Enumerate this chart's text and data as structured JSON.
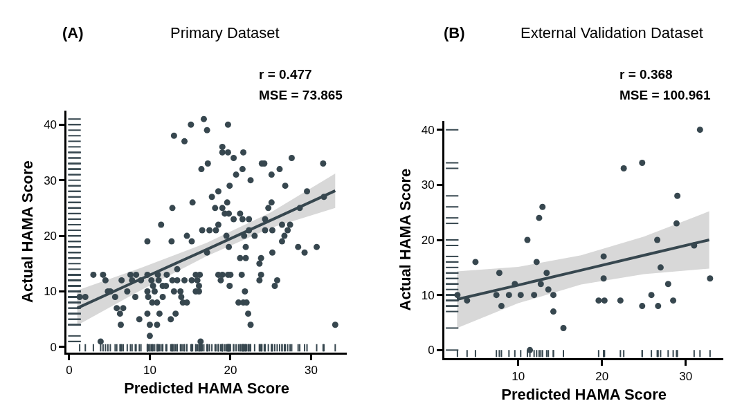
{
  "chart_data": [
    {
      "type": "scatter",
      "title": "Primary Dataset",
      "xlabel": "Predicted HAMA Score",
      "ylabel": "Actual HAMA Score",
      "annotations": [
        "(A)",
        "r = 0.477",
        "MSE = 73.865"
      ],
      "xlim": [
        -0.3,
        34.4
      ],
      "ylim": [
        -1,
        42.5
      ],
      "xticks": [
        0,
        10,
        20,
        30
      ],
      "yticks": [
        0,
        10,
        20,
        30,
        40
      ],
      "grid": false,
      "series": [
        {
          "type": "scatter",
          "marker": "circle",
          "color": "#37474f",
          "x": [
            1.3,
            2.0,
            3.0,
            4.2,
            4.5,
            3.9,
            4.8,
            5.1,
            5.7,
            6.5,
            5.9,
            6.7,
            6.3,
            6.4,
            7.2,
            7.6,
            8.3,
            7.8,
            8.2,
            8.7,
            8.9,
            9.7,
            9.7,
            10.2,
            9.7,
            9.8,
            10.4,
            10.6,
            10.3,
            10.9,
            9.7,
            10.0,
            10.9,
            10.0,
            11.2,
            11.0,
            11.1,
            11.6,
            12.0,
            11.6,
            11.4,
            12.7,
            12.8,
            13.0,
            14.3,
            15.1,
            15.3,
            14.6,
            15.2,
            16.4,
            16.5,
            13.4,
            12.1,
            12.8,
            13.4,
            13.0,
            13.8,
            13.9,
            14.1,
            14.6,
            13.2,
            12.6,
            14.3,
            15.2,
            15.7,
            16.2,
            15.9,
            16.1,
            15.7,
            16.1,
            16.3,
            16.7,
            17.1,
            19.7,
            19.0,
            19.0,
            19.7,
            20.4,
            21.6,
            17.2,
            20.7,
            21.5,
            19.9,
            22.5,
            23.9,
            24.2,
            25.1,
            26.1,
            27.6,
            26.8,
            31.5,
            29.5,
            31.6,
            28.6,
            18.5,
            17.7,
            18.1,
            19.0,
            19.6,
            19.3,
            19.8,
            20.4,
            21.2,
            21.5,
            22.3,
            18.5,
            17.4,
            18.2,
            19.5,
            21.7,
            23.0,
            22.3,
            24.3,
            25.1,
            24.7,
            24.3,
            25.2,
            26.4,
            27.4,
            27.1,
            26.7,
            26.4,
            28.4,
            29.2,
            30.7,
            19.8,
            21.9,
            17.1,
            21.2,
            21.9,
            23.8,
            23.6,
            25.2,
            18.5,
            19.0,
            19.7,
            20.0,
            18.8,
            19.9,
            21.4,
            23.8,
            23.6,
            25.8,
            25.5,
            21.8,
            21.0,
            21.6,
            22.0,
            22.2,
            22.5,
            33.0
          ],
          "values": [
            9,
            9,
            13,
            13,
            12,
            1,
            10,
            10,
            9,
            12,
            7,
            7,
            6,
            4,
            10,
            13,
            13,
            12,
            9,
            5,
            12,
            19,
            13,
            12,
            10,
            9,
            11,
            10,
            8,
            8,
            6,
            4,
            4,
            2,
            6,
            13,
            12,
            11,
            11,
            9,
            22,
            19,
            25,
            38,
            37,
            40,
            26,
            20,
            19,
            32,
            21,
            14,
            13,
            12,
            12,
            10,
            10,
            9,
            8,
            8,
            6,
            5,
            12,
            12,
            13,
            13,
            12,
            11,
            10,
            10,
            1,
            41,
            39,
            40,
            36,
            35,
            35,
            34,
            35,
            33,
            31,
            32,
            29,
            30,
            33,
            33,
            31,
            32,
            34,
            29,
            33,
            28,
            27,
            25,
            28,
            27,
            25,
            25,
            26,
            24,
            24,
            23,
            24,
            23,
            23,
            22,
            21,
            21,
            20,
            20,
            20,
            21,
            23,
            26,
            25,
            21,
            21,
            22,
            22,
            21,
            20,
            19,
            18,
            17,
            18,
            18,
            18,
            17,
            16,
            16,
            16,
            15,
            17,
            13,
            13,
            13,
            13,
            12,
            11,
            13,
            13,
            12,
            12,
            11,
            10,
            8,
            8,
            8,
            6,
            4,
            4
          ]
        },
        {
          "type": "line",
          "marker": "none",
          "color": "#37474f",
          "x": [
            1,
            9,
            17,
            25,
            33
          ],
          "values": [
            7,
            12.3,
            17.5,
            22.8,
            28.1
          ],
          "lower": [
            3.9,
            10.3,
            16.3,
            21.4,
            25
          ],
          "upper": [
            10.2,
            14.3,
            18.7,
            24.2,
            31.2
          ]
        }
      ]
    },
    {
      "type": "scatter",
      "title": "External Validation Dataset",
      "xlabel": "Predicted HAMA Score",
      "ylabel": "Actual HAMA Score",
      "annotations": [
        "(B)",
        "r = 0.368",
        "MSE = 100.961"
      ],
      "xlim": [
        1.2,
        34.5
      ],
      "ylim": [
        -1.5,
        41.6
      ],
      "xticks": [
        10,
        20,
        30
      ],
      "yticks": [
        0,
        10,
        20,
        30,
        40
      ],
      "grid": false,
      "series": [
        {
          "type": "scatter",
          "marker": "circle",
          "color": "#37474f",
          "x": [
            2.75,
            3.9,
            4.9,
            7.75,
            7.4,
            8.0,
            8.9,
            9.6,
            10.3,
            11.1,
            11.4,
            11.9,
            12.2,
            12.5,
            12.9,
            12.7,
            13.4,
            13.6,
            14.2,
            14.2,
            15.4,
            20.2,
            20.2,
            19.6,
            20.3,
            22.2,
            22.6,
            24.8,
            24.8,
            25.9,
            26.6,
            26.7,
            27.0,
            27.9,
            28.5,
            28.9,
            29.0,
            31.0,
            31.7,
            32.9
          ],
          "values": [
            10,
            9,
            16,
            14,
            10,
            8,
            10,
            12,
            10,
            20,
            0,
            10,
            16,
            24,
            26,
            12,
            14,
            11,
            10,
            7,
            4,
            17,
            13,
            9,
            9,
            9,
            33,
            34,
            8,
            10,
            20,
            8,
            15,
            12,
            9,
            23,
            28,
            19,
            40,
            13
          ]
        },
        {
          "type": "line",
          "marker": "none",
          "color": "#37474f",
          "x": [
            2.7,
            10,
            17.5,
            25,
            32.8
          ],
          "values": [
            9.2,
            11.8,
            14.5,
            17.2,
            20
          ],
          "lower": [
            4,
            8.5,
            11.9,
            13.8,
            14.8
          ],
          "upper": [
            14.3,
            15.1,
            17.2,
            20.6,
            25.2
          ]
        }
      ]
    }
  ]
}
